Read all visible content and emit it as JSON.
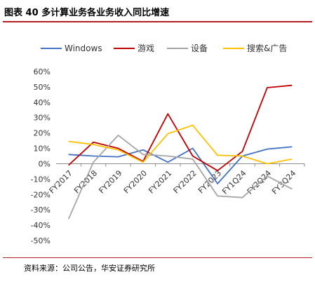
{
  "figure_title": "图表 40  多计算业务各业务收入同比增速",
  "source_text": "资料来源：公司公告，华安证券研究所",
  "chart_data": {
    "type": "line",
    "title": "",
    "xlabel": "",
    "ylabel": "",
    "categories": [
      "FY2017",
      "FY2018",
      "FY2019",
      "FY2020",
      "FY2021",
      "FY2022",
      "FY2023",
      "FY1Q24",
      "FY2Q24",
      "FY3Q24"
    ],
    "y_ticks": [
      "60%",
      "50%",
      "40%",
      "30%",
      "20%",
      "10%",
      "0%",
      "-10%",
      "-20%",
      "-30%",
      "-40%",
      "-50%"
    ],
    "ylim": [
      -50,
      60
    ],
    "grid": false,
    "legend_position": "top",
    "series": [
      {
        "name": "Windows",
        "color": "#4472c4",
        "values": [
          6,
          5,
          4.5,
          9,
          1,
          10,
          -13,
          5,
          9.5,
          11
        ]
      },
      {
        "name": "游戏",
        "color": "#c00000",
        "values": [
          -1,
          14,
          10,
          1.5,
          32.5,
          5,
          -4.5,
          8,
          49.5,
          51
        ]
      },
      {
        "name": "设备",
        "color": "#a5a5a5",
        "values": [
          -36,
          1,
          18.5,
          6,
          5,
          3,
          -21,
          -22,
          -8,
          -16.5
        ]
      },
      {
        "name": "搜索&广告",
        "color": "#ffc000",
        "values": [
          14.5,
          12.5,
          9,
          1,
          19.5,
          25,
          5.5,
          5,
          0,
          3
        ]
      }
    ]
  }
}
